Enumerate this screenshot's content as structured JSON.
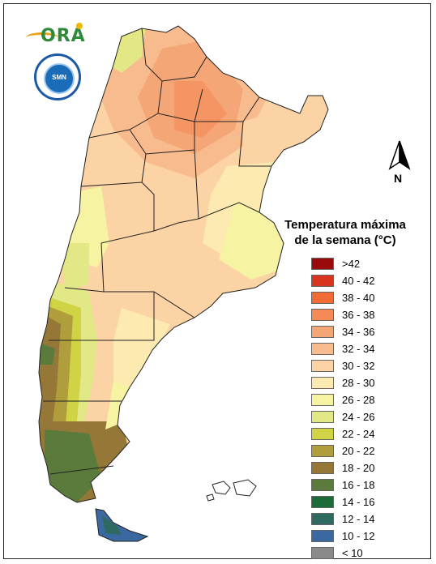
{
  "map": {
    "title_line1": "Temperatura máxima",
    "title_line2": "de la semana (°C)",
    "north_label": "N"
  },
  "logos": {
    "ora": "ORA",
    "smn_inner": "SMN"
  },
  "legend": [
    {
      "label": ">42",
      "color": "#9b0a0a"
    },
    {
      "label": "40 - 42",
      "color": "#d9341e"
    },
    {
      "label": "38 - 40",
      "color": "#f26b35"
    },
    {
      "label": "36 - 38",
      "color": "#f58a56"
    },
    {
      "label": "34 - 36",
      "color": "#f5a676"
    },
    {
      "label": "32 - 34",
      "color": "#f8bb8e"
    },
    {
      "label": "30 - 32",
      "color": "#fbd3a4"
    },
    {
      "label": "28 - 30",
      "color": "#fdeab0"
    },
    {
      "label": "26 - 28",
      "color": "#f6f3a2"
    },
    {
      "label": "24 - 26",
      "color": "#e3e887"
    },
    {
      "label": "22 - 24",
      "color": "#cfd344"
    },
    {
      "label": "20 - 22",
      "color": "#b09e3d"
    },
    {
      "label": "18 - 20",
      "color": "#957838"
    },
    {
      "label": "16 - 18",
      "color": "#5a7b3b"
    },
    {
      "label": "14 - 16",
      "color": "#1e6b3a"
    },
    {
      "label": "12 - 14",
      "color": "#2f6a60"
    },
    {
      "label": "10 - 12",
      "color": "#3a68a0"
    },
    {
      "label": "< 10",
      "color": "#8a8a8a"
    }
  ]
}
